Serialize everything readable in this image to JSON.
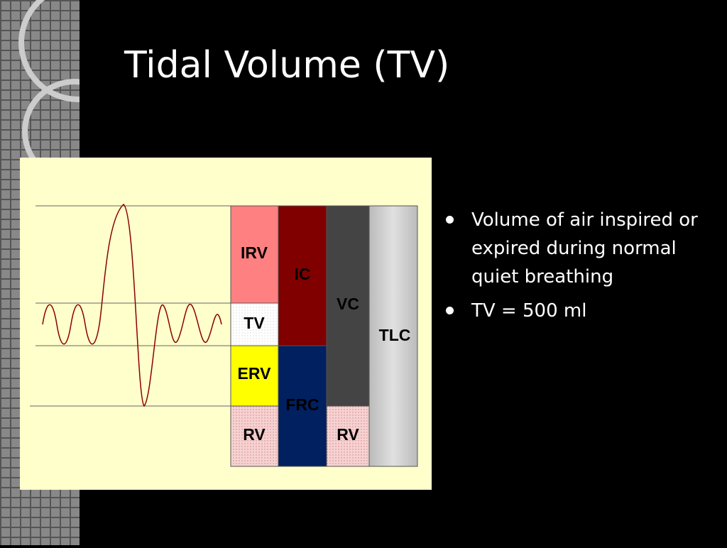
{
  "title": "Tidal Volume (TV)",
  "diagram": {
    "labels": [
      "IRV",
      "TV",
      "ERV",
      "RV",
      "IC",
      "FRC",
      "VC",
      "RV",
      "TLC"
    ]
  },
  "bullets": [
    "Volume of air inspired or expired during normal quiet breathing",
    "TV = 500 ml"
  ]
}
